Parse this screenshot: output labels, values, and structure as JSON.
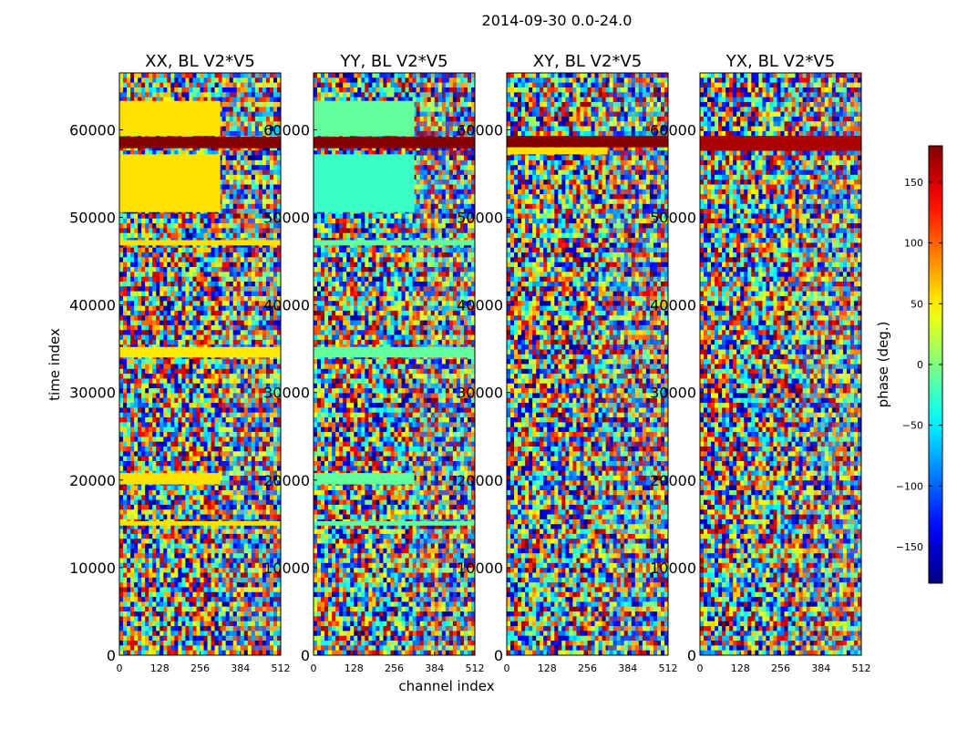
{
  "figure": {
    "suptitle": "2014-09-30 0.0-24.0"
  },
  "chart_data": {
    "type": "heatmap",
    "x_label": "channel index",
    "y_label": "time index",
    "colorbar_label": "phase (deg.)",
    "colorbar_range": [
      -180,
      180
    ],
    "colorbar_ticks": [
      150,
      100,
      50,
      0,
      -50,
      -100,
      -150
    ],
    "colorbar_tick_labels": [
      "150",
      "100",
      "50",
      "0",
      "−50",
      "−100",
      "−150"
    ],
    "x_range": [
      0,
      512
    ],
    "x_ticks": [
      0,
      128,
      256,
      384,
      512
    ],
    "y_range": [
      0,
      66500
    ],
    "y_ticks": [
      0,
      10000,
      20000,
      30000,
      40000,
      50000,
      60000
    ],
    "panels": [
      {
        "title": "XX, BL V2*V5",
        "bands": [
          {
            "y0": 57900,
            "y1": 59200,
            "x1": 512,
            "phase": 178
          },
          {
            "y0": 50600,
            "y1": 57200,
            "x1": 320,
            "phase": 55
          },
          {
            "y0": 59300,
            "y1": 63300,
            "x1": 320,
            "phase": 55
          },
          {
            "y0": 34000,
            "y1": 35200,
            "x1": 512,
            "phase": 52
          },
          {
            "y0": 19500,
            "y1": 20800,
            "x1": 320,
            "phase": 55
          },
          {
            "y0": 14800,
            "y1": 15300,
            "x1": 512,
            "phase": 55
          },
          {
            "y0": 46800,
            "y1": 47400,
            "x1": 512,
            "phase": 55
          }
        ]
      },
      {
        "title": "YY, BL V2*V5",
        "bands": [
          {
            "y0": 57900,
            "y1": 59200,
            "x1": 512,
            "phase": 178
          },
          {
            "y0": 50600,
            "y1": 57200,
            "x1": 320,
            "phase": -25
          },
          {
            "y0": 59300,
            "y1": 63300,
            "x1": 320,
            "phase": -10
          },
          {
            "y0": 34000,
            "y1": 35200,
            "x1": 512,
            "phase": -10
          },
          {
            "y0": 19500,
            "y1": 20800,
            "x1": 320,
            "phase": -10
          },
          {
            "y0": 14800,
            "y1": 15300,
            "x1": 512,
            "phase": -10
          },
          {
            "y0": 46800,
            "y1": 47400,
            "x1": 512,
            "phase": -10
          }
        ]
      },
      {
        "title": "XY, BL V2*V5",
        "bands": [
          {
            "y0": 58000,
            "y1": 59300,
            "x1": 512,
            "phase": 178
          },
          {
            "y0": 57200,
            "y1": 58000,
            "x1": 320,
            "phase": 55
          }
        ]
      },
      {
        "title": "YX, BL V2*V5",
        "bands": [
          {
            "y0": 57600,
            "y1": 59300,
            "x1": 512,
            "phase": 165
          }
        ]
      }
    ]
  }
}
